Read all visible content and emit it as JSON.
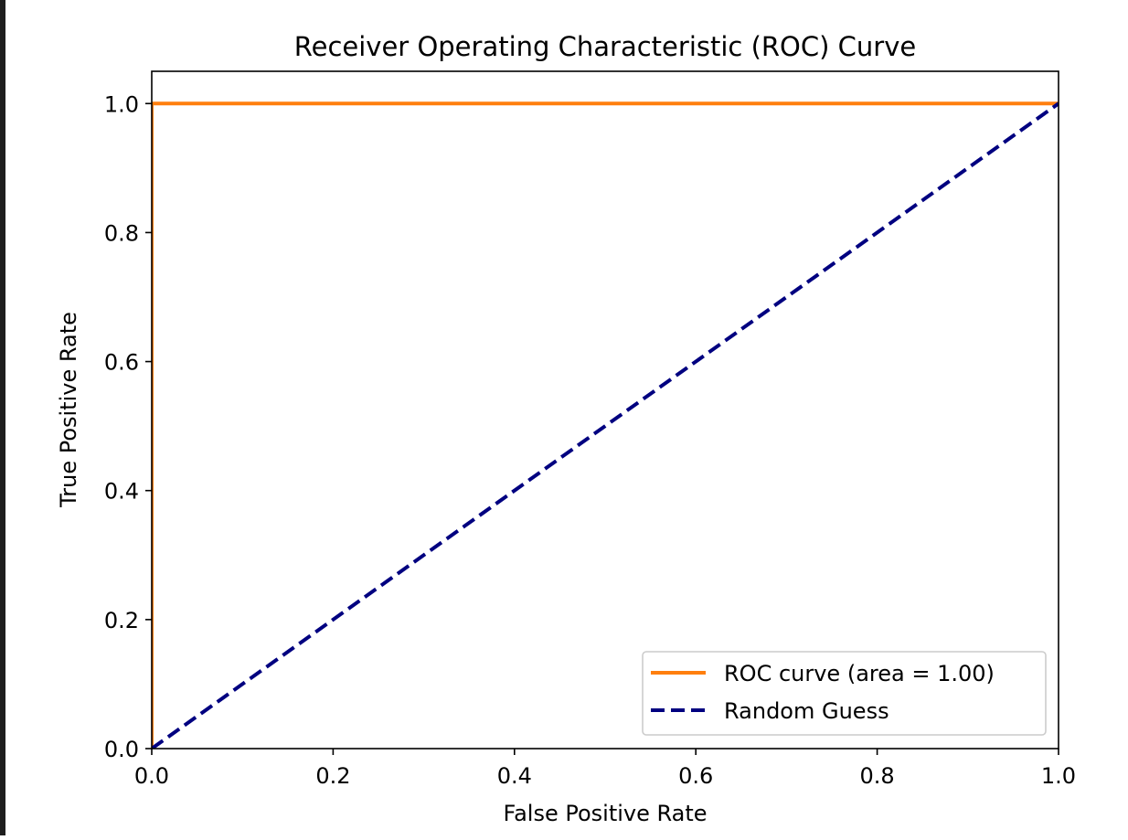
{
  "chart_data": {
    "type": "line",
    "title": "Receiver Operating Characteristic (ROC) Curve",
    "xlabel": "False Positive Rate",
    "ylabel": "True Positive Rate",
    "xlim": [
      0.0,
      1.0
    ],
    "ylim": [
      0.0,
      1.05
    ],
    "x_ticks": [
      0.0,
      0.2,
      0.4,
      0.6,
      0.8,
      1.0
    ],
    "y_ticks": [
      0.0,
      0.2,
      0.4,
      0.6,
      0.8,
      1.0
    ],
    "x_tick_labels": [
      "0.0",
      "0.2",
      "0.4",
      "0.6",
      "0.8",
      "1.0"
    ],
    "y_tick_labels": [
      "0.0",
      "0.2",
      "0.4",
      "0.6",
      "0.8",
      "1.0"
    ],
    "grid": false,
    "legend_position": "lower-right",
    "series": [
      {
        "name": "ROC curve (area = 1.00)",
        "color": "#ff7f0e",
        "style": "solid",
        "x": [
          0.0,
          0.0,
          1.0
        ],
        "y": [
          0.0,
          1.0,
          1.0
        ]
      },
      {
        "name": "Random Guess",
        "color": "#000080",
        "style": "dashed",
        "x": [
          0.0,
          1.0
        ],
        "y": [
          0.0,
          1.0
        ]
      }
    ]
  }
}
